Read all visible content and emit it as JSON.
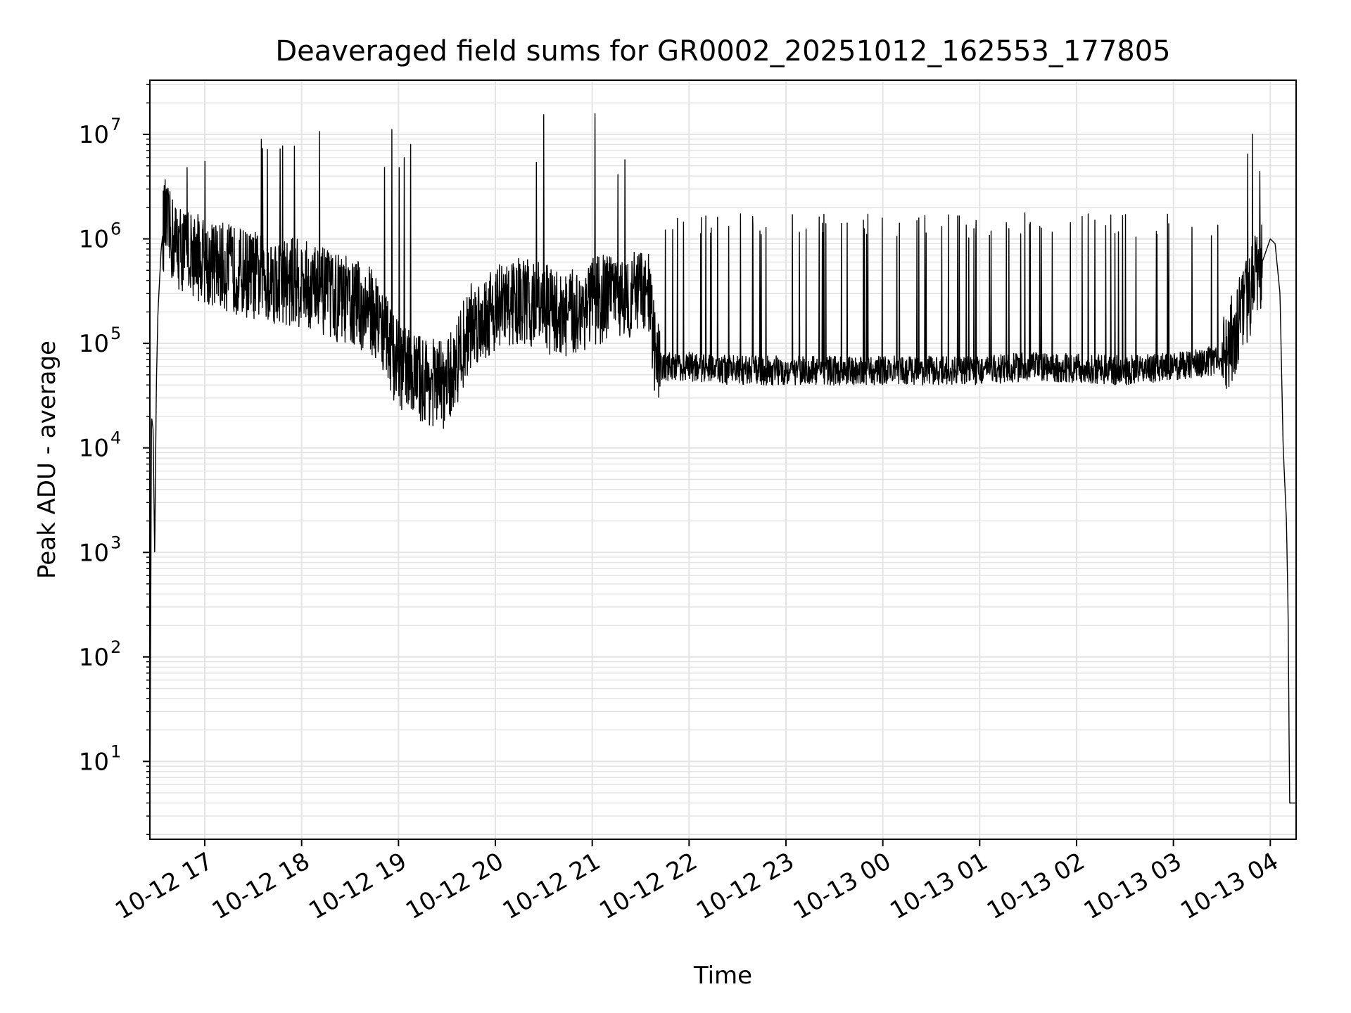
{
  "chart_data": {
    "type": "line",
    "title": "Deaveraged field sums for GR0002_20251012_162553_177805",
    "xlabel": "Time",
    "ylabel": "Peak ADU - average",
    "yscale": "log",
    "ylim": [
      1.8,
      33000000
    ],
    "xlim": [
      "2025-10-12 16:26",
      "2025-10-13 04:16"
    ],
    "grid": {
      "major": true,
      "minor": true,
      "color": "#e4e4e4"
    },
    "line_color": "#000000",
    "x_ticks": [
      "10-12 17",
      "10-12 18",
      "10-12 19",
      "10-12 20",
      "10-12 21",
      "10-12 22",
      "10-12 23",
      "10-13 00",
      "10-13 01",
      "10-13 02",
      "10-13 03",
      "10-13 04"
    ],
    "y_ticks": [
      {
        "value": 10,
        "base": "10",
        "exp": "1"
      },
      {
        "value": 100,
        "base": "10",
        "exp": "2"
      },
      {
        "value": 1000,
        "base": "10",
        "exp": "3"
      },
      {
        "value": 10000,
        "base": "10",
        "exp": "4"
      },
      {
        "value": 100000,
        "base": "10",
        "exp": "5"
      },
      {
        "value": 1000000,
        "base": "10",
        "exp": "6"
      },
      {
        "value": 10000000,
        "base": "10",
        "exp": "7"
      }
    ],
    "series": [
      {
        "x": [
          "2025-10-12 16:26",
          "2025-10-12 16:27",
          "2025-10-12 16:28",
          "2025-10-12 16:29",
          "2025-10-12 16:30",
          "2025-10-12 16:31",
          "2025-10-12 16:33",
          "2025-10-12 16:35",
          "2025-10-12 16:38",
          "2025-10-12 16:42",
          "2025-10-12 16:46",
          "2025-10-12 16:50",
          "2025-10-12 16:55",
          "2025-10-12 17:00",
          "2025-10-12 17:10",
          "2025-10-12 17:20",
          "2025-10-12 17:30",
          "2025-10-12 17:45",
          "2025-10-12 18:00",
          "2025-10-12 18:15",
          "2025-10-12 18:30",
          "2025-10-12 18:45",
          "2025-10-12 19:00",
          "2025-10-12 19:15",
          "2025-10-12 19:30",
          "2025-10-12 19:45",
          "2025-10-12 20:00",
          "2025-10-12 20:15",
          "2025-10-12 20:30",
          "2025-10-12 20:45",
          "2025-10-12 21:00",
          "2025-10-12 21:20",
          "2025-10-12 21:35",
          "2025-10-12 21:40",
          "2025-10-12 22:00",
          "2025-10-12 22:30",
          "2025-10-12 23:00",
          "2025-10-12 23:30",
          "2025-10-13 00:00",
          "2025-10-13 00:30",
          "2025-10-13 01:00",
          "2025-10-13 01:30",
          "2025-10-13 02:00",
          "2025-10-13 02:30",
          "2025-10-13 03:00",
          "2025-10-13 03:30",
          "2025-10-13 03:40",
          "2025-10-13 03:50",
          "2025-10-13 03:55",
          "2025-10-13 04:00",
          "2025-10-13 04:03",
          "2025-10-13 04:06",
          "2025-10-13 04:08",
          "2025-10-13 04:10",
          "2025-10-13 04:11",
          "2025-10-13 04:12",
          "2025-10-13 04:16"
        ],
        "y": [
          3,
          20000,
          15000,
          900,
          40000,
          200000,
          800000,
          1500000,
          1100000,
          900000,
          800000,
          750000,
          700000,
          600000,
          550000,
          500000,
          450000,
          400000,
          380000,
          300000,
          250000,
          200000,
          60000,
          45000,
          40000,
          150000,
          220000,
          250000,
          220000,
          180000,
          250000,
          300000,
          280000,
          60000,
          60000,
          55000,
          55000,
          55000,
          55000,
          55000,
          55000,
          60000,
          58000,
          55000,
          60000,
          70000,
          150000,
          400000,
          600000,
          1000000,
          900000,
          300000,
          10000,
          2000,
          300,
          4,
          4
        ]
      }
    ]
  }
}
